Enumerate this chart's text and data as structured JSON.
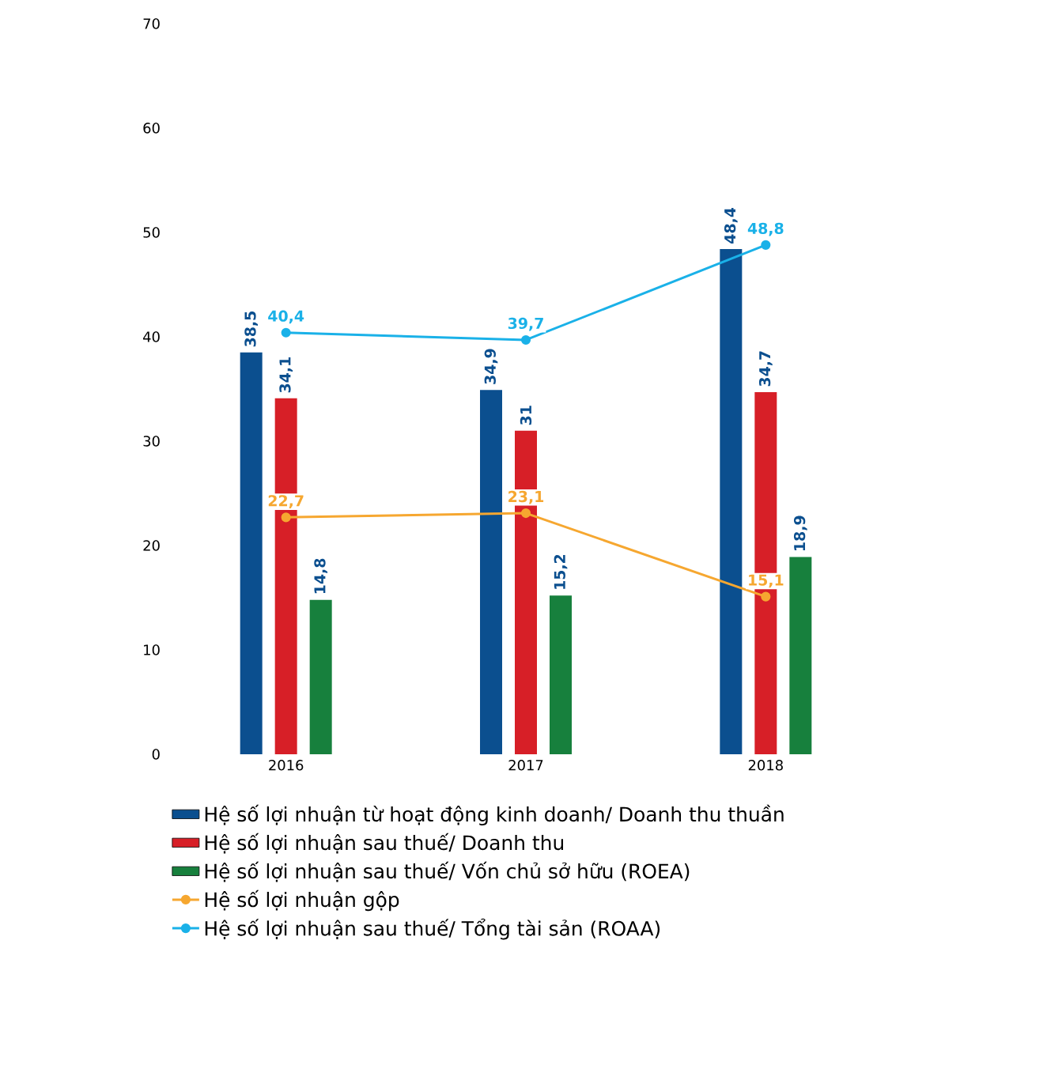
{
  "chart_data": {
    "type": "bar",
    "categories": [
      "2016",
      "2017",
      "2018"
    ],
    "ylim": [
      0,
      70
    ],
    "yticks": [
      0,
      10,
      20,
      30,
      40,
      50,
      60,
      70
    ],
    "grid": false,
    "legend": "bottom",
    "series": [
      {
        "name": "Hệ số lợi nhuận từ hoạt động kinh doanh/ Doanh thu thuần",
        "color": "#0b4f8f",
        "values": [
          38.5,
          34.9,
          48.4
        ],
        "value_labels": [
          "38,5",
          "34,9",
          "48,4"
        ]
      },
      {
        "name": "Hệ số lợi nhuận sau thuế/ Doanh thu",
        "color": "#d71f27",
        "values": [
          34.1,
          31,
          34.7
        ],
        "value_labels": [
          "34,1",
          "31",
          "34,7"
        ]
      },
      {
        "name": "Hệ số lợi nhuận sau thuế/ Vốn chủ sở hữu (ROEA)",
        "color": "#17803d",
        "values": [
          14.8,
          15.2,
          18.9
        ],
        "value_labels": [
          "14,8",
          "15,2",
          "18,9"
        ]
      },
      {
        "name": "Hệ số lợi nhuận gộp",
        "type": "line",
        "marker": "circle",
        "color": "#f6a730",
        "values": [
          22.7,
          23.1,
          15.1
        ],
        "value_labels": [
          "22,7",
          "23,1",
          "15,1"
        ]
      },
      {
        "name": "Hệ số lợi nhuận sau thuế/ Tổng tài sản (ROAA)",
        "type": "line",
        "marker": "circle",
        "color": "#1ab1e8",
        "values": [
          40.4,
          39.7,
          48.8
        ],
        "value_labels": [
          "40,4",
          "39,7",
          "48,8"
        ]
      }
    ]
  }
}
